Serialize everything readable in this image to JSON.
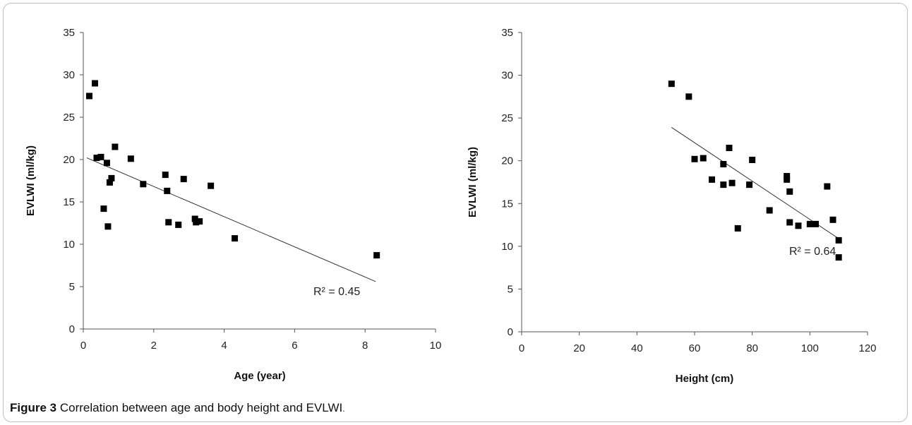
{
  "caption": {
    "label": "Figure 3",
    "text": "Correlation between age and body height and EVLWI",
    "end": "."
  },
  "chart_data": [
    {
      "type": "scatter",
      "xlabel": "Age (year)",
      "ylabel": "EVLWI (ml/kg)",
      "xlim": [
        0,
        10
      ],
      "ylim": [
        0,
        35
      ],
      "xticks": [
        0,
        2,
        4,
        6,
        8,
        10
      ],
      "yticks": [
        0,
        5,
        10,
        15,
        20,
        25,
        30,
        35
      ],
      "grid": false,
      "trendline": {
        "x": [
          0.1,
          8.3
        ],
        "y": [
          20.2,
          5.6
        ]
      },
      "annotation": "R² = 0.45",
      "points": [
        {
          "x": 0.17,
          "y": 27.5
        },
        {
          "x": 0.33,
          "y": 29.0
        },
        {
          "x": 0.38,
          "y": 20.2
        },
        {
          "x": 0.5,
          "y": 20.3
        },
        {
          "x": 0.58,
          "y": 14.2
        },
        {
          "x": 0.67,
          "y": 19.6
        },
        {
          "x": 0.7,
          "y": 12.1
        },
        {
          "x": 0.75,
          "y": 17.3
        },
        {
          "x": 0.8,
          "y": 17.8
        },
        {
          "x": 0.9,
          "y": 21.5
        },
        {
          "x": 1.35,
          "y": 20.1
        },
        {
          "x": 1.7,
          "y": 17.1
        },
        {
          "x": 2.33,
          "y": 18.2
        },
        {
          "x": 2.38,
          "y": 16.3
        },
        {
          "x": 2.42,
          "y": 12.6
        },
        {
          "x": 2.7,
          "y": 12.3
        },
        {
          "x": 2.85,
          "y": 17.7
        },
        {
          "x": 3.17,
          "y": 13.0
        },
        {
          "x": 3.2,
          "y": 12.6
        },
        {
          "x": 3.3,
          "y": 12.7
        },
        {
          "x": 3.62,
          "y": 16.9
        },
        {
          "x": 4.3,
          "y": 10.7
        },
        {
          "x": 8.33,
          "y": 8.7
        }
      ]
    },
    {
      "type": "scatter",
      "xlabel": "Height (cm)",
      "ylabel": "EVLWI (ml/kg)",
      "xlim": [
        0,
        120
      ],
      "ylim": [
        0,
        35
      ],
      "xticks": [
        0,
        20,
        40,
        60,
        80,
        100,
        120
      ],
      "yticks": [
        0,
        5,
        10,
        15,
        20,
        25,
        30,
        35
      ],
      "grid": false,
      "trendline": {
        "x": [
          52,
          110
        ],
        "y": [
          23.9,
          10.9
        ]
      },
      "annotation": "R² = 0.64",
      "points": [
        {
          "x": 52,
          "y": 29.0
        },
        {
          "x": 58,
          "y": 27.5
        },
        {
          "x": 60,
          "y": 20.2
        },
        {
          "x": 63,
          "y": 20.3
        },
        {
          "x": 66,
          "y": 17.8
        },
        {
          "x": 70,
          "y": 19.6
        },
        {
          "x": 70,
          "y": 17.2
        },
        {
          "x": 72,
          "y": 21.5
        },
        {
          "x": 73,
          "y": 17.4
        },
        {
          "x": 75,
          "y": 12.1
        },
        {
          "x": 79,
          "y": 17.2
        },
        {
          "x": 80,
          "y": 20.1
        },
        {
          "x": 86,
          "y": 14.2
        },
        {
          "x": 92,
          "y": 18.2
        },
        {
          "x": 92,
          "y": 17.8
        },
        {
          "x": 93,
          "y": 16.4
        },
        {
          "x": 93,
          "y": 12.8
        },
        {
          "x": 96,
          "y": 12.4
        },
        {
          "x": 100,
          "y": 12.6
        },
        {
          "x": 102,
          "y": 12.6
        },
        {
          "x": 106,
          "y": 17.0
        },
        {
          "x": 108,
          "y": 13.1
        },
        {
          "x": 110,
          "y": 10.7
        },
        {
          "x": 110,
          "y": 8.7
        }
      ]
    }
  ]
}
